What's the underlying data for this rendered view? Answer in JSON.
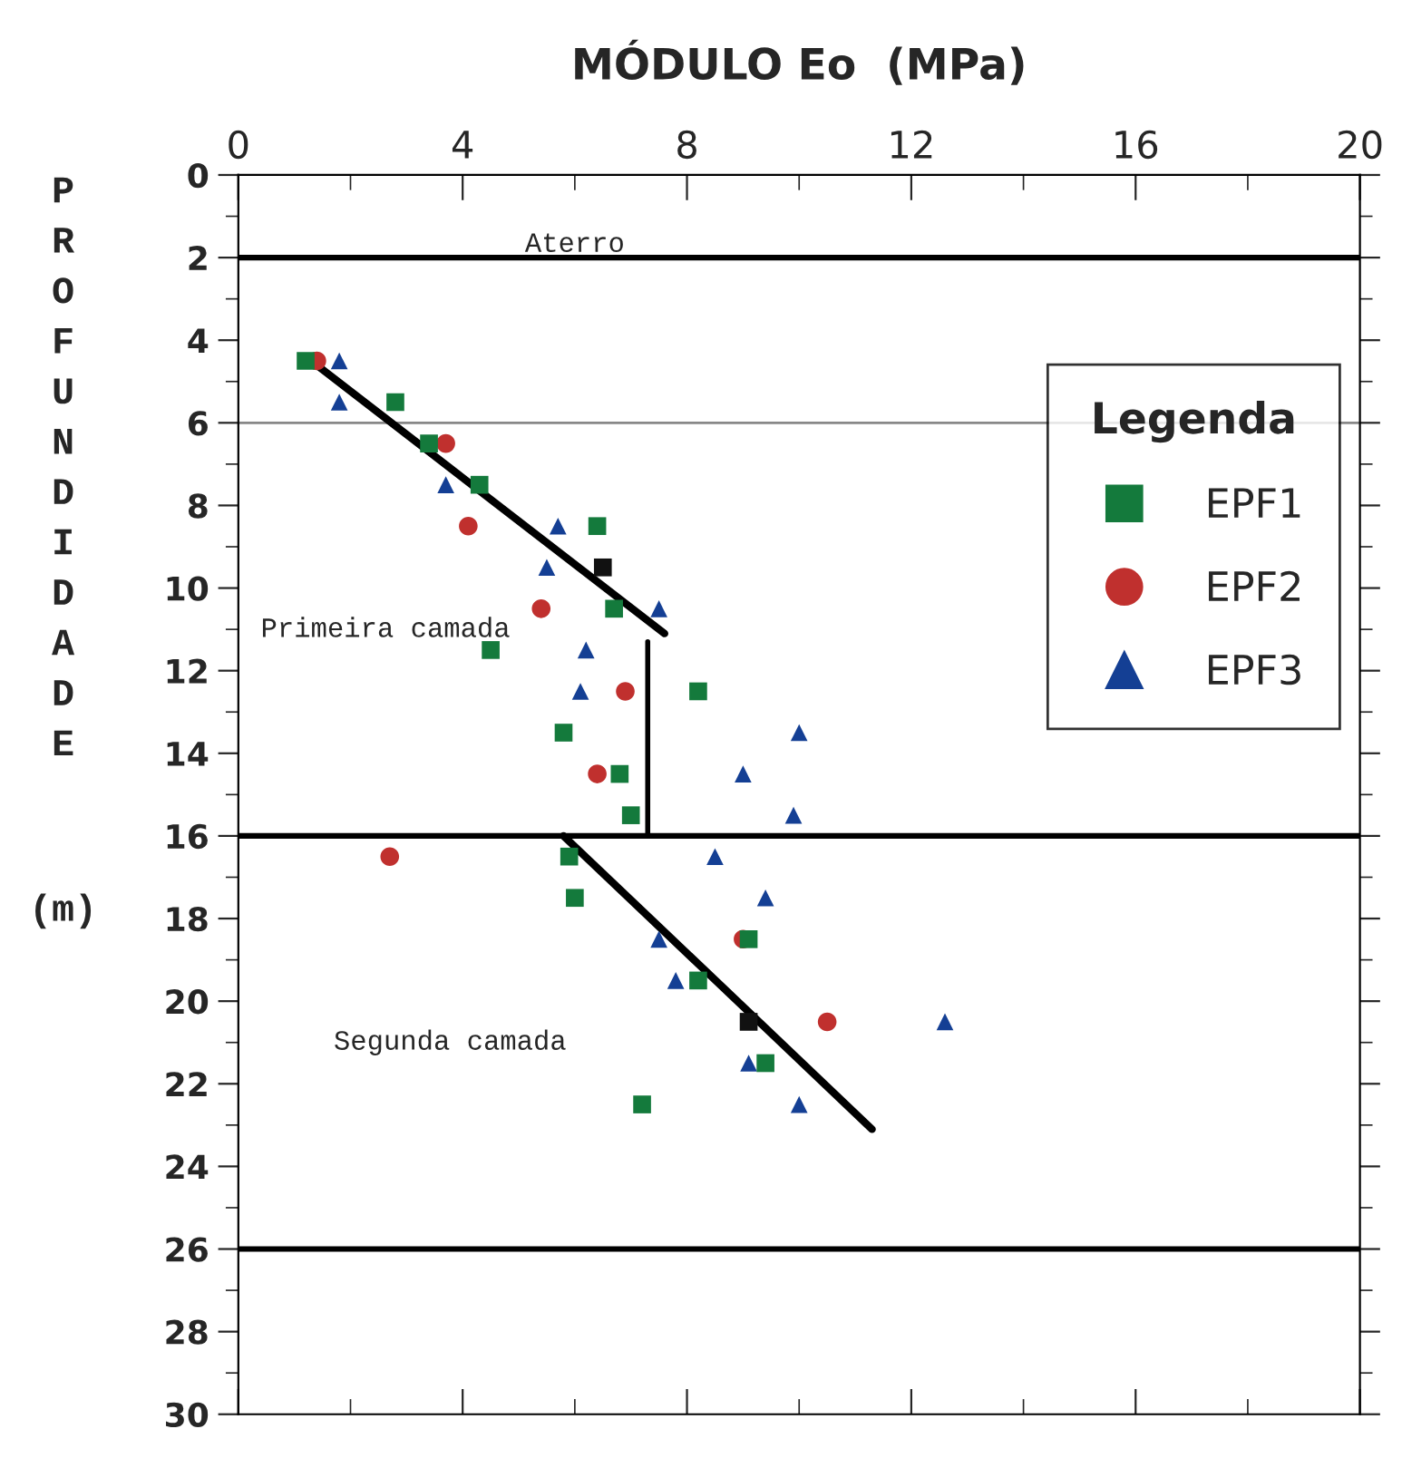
{
  "chart_data": {
    "type": "scatter",
    "title": "MÓDULO Eo  (MPa)",
    "ylabel": "PROFUNDIDADE (m)",
    "legend_title": "Legenda",
    "legend": "right",
    "grid": false,
    "xlim": [
      0,
      20
    ],
    "xticks": [
      0,
      4,
      8,
      12,
      16,
      20
    ],
    "ylim": [
      30,
      0
    ],
    "yticks": [
      0,
      2,
      4,
      6,
      8,
      10,
      12,
      14,
      16,
      18,
      20,
      22,
      24,
      26,
      28,
      30
    ],
    "series": [
      {
        "name": "EPF1",
        "color": "#147a3c",
        "marker": "square",
        "x": [
          1.2,
          2.8,
          3.4,
          4.3,
          6.4,
          6.7,
          4.5,
          8.2,
          5.8,
          6.8,
          7.0,
          5.9,
          6.0,
          9.1,
          8.2,
          9.4,
          7.2
        ],
        "values": [
          4.5,
          5.5,
          6.5,
          7.5,
          8.5,
          10.5,
          11.5,
          12.5,
          13.5,
          14.5,
          15.5,
          16.5,
          17.5,
          18.5,
          19.5,
          21.5,
          22.5
        ]
      },
      {
        "name": "EPF2",
        "color": "#c0302e",
        "marker": "circle",
        "x": [
          1.4,
          3.7,
          4.1,
          5.4,
          6.9,
          6.4,
          2.7,
          9.0,
          10.5
        ],
        "values": [
          4.5,
          6.5,
          8.5,
          10.5,
          12.5,
          14.5,
          16.5,
          18.5,
          20.5
        ]
      },
      {
        "name": "EPF3",
        "color": "#143f94",
        "marker": "triangle",
        "x": [
          1.8,
          1.8,
          3.7,
          5.7,
          5.5,
          7.5,
          6.2,
          6.1,
          10.0,
          9.0,
          9.9,
          8.5,
          9.4,
          7.5,
          7.8,
          12.6,
          9.1,
          10.0
        ],
        "values": [
          4.5,
          5.5,
          7.5,
          8.5,
          9.5,
          10.5,
          11.5,
          12.5,
          13.5,
          14.5,
          15.5,
          16.5,
          17.5,
          18.5,
          19.5,
          20.5,
          21.5,
          22.5
        ]
      },
      {
        "color": "#111111",
        "marker": "square",
        "x": [
          6.5,
          9.1
        ],
        "values": [
          9.5,
          20.5
        ]
      },
      {
        "type": "line",
        "color": "#000000",
        "x": [
          1.3,
          7.6
        ],
        "values": [
          4.5,
          11.1
        ]
      },
      {
        "type": "line",
        "color": "#000000",
        "x": [
          7.3,
          7.3
        ],
        "values": [
          11.3,
          16
        ]
      },
      {
        "type": "line",
        "color": "#000000",
        "x": [
          5.8,
          11.3
        ],
        "values": [
          16,
          23.1
        ]
      }
    ],
    "ref_lines": [
      {
        "axis": "y",
        "value": 2,
        "label": "Aterro",
        "color": "#000000"
      },
      {
        "axis": "y",
        "value": 6,
        "color": "#888888"
      },
      {
        "axis": "y",
        "value": 16,
        "color": "#000000"
      },
      {
        "axis": "y",
        "value": 26,
        "color": "#000000"
      }
    ],
    "annotations": [
      "Primeira camada",
      "Segunda camada"
    ]
  }
}
